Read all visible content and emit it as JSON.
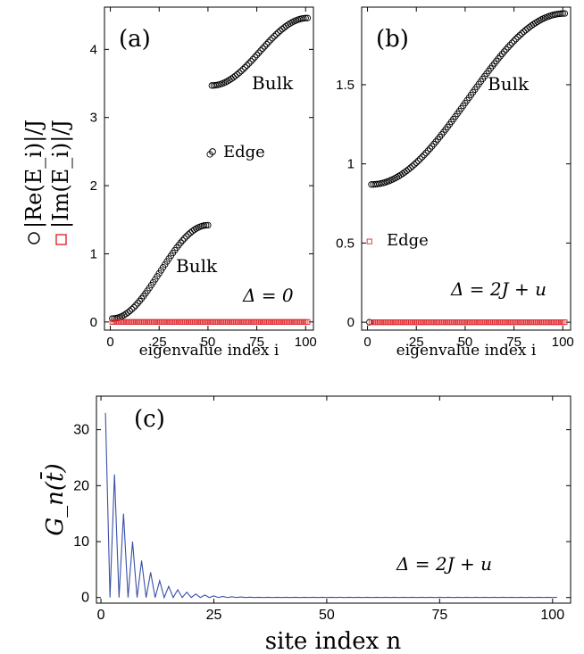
{
  "chart_data": [
    {
      "type": "scatter",
      "panel_label": "(a)",
      "xlabel": "eigenvalue index i",
      "ylabel_re": "|Re(E_i)|/J",
      "ylabel_im": "|Im(E_i)|/J",
      "xlim": [
        -3,
        104
      ],
      "ylim": [
        -0.12,
        4.62
      ],
      "xticks": [
        "0",
        "25",
        "50",
        "75",
        "100"
      ],
      "yticks": [
        "0",
        "1",
        "2",
        "3",
        "4"
      ],
      "annotations": [
        "Bulk",
        "Edge",
        "Bulk",
        "Δ = 0"
      ],
      "series": [
        {
          "marker": "circle",
          "color": "#000000",
          "segments": [
            {
              "i_start": 1,
              "i_end": 50,
              "y_start": 0.05,
              "y_end": 1.42
            },
            {
              "i_start": 52,
              "i_end": 101,
              "y_start": 3.47,
              "y_end": 4.46
            }
          ],
          "points": [
            {
              "x": 51,
              "y": 2.46
            }
          ]
        },
        {
          "marker": "square",
          "color": "#e0282e",
          "x_start": 1,
          "x_end": 101,
          "y": 0
        }
      ]
    },
    {
      "type": "scatter",
      "panel_label": "(b)",
      "xlabel": "eigenvalue index i",
      "xlim": [
        -3,
        104
      ],
      "ylim": [
        -0.05,
        1.99
      ],
      "xticks": [
        "0",
        "25",
        "50",
        "75",
        "100"
      ],
      "yticks": [
        "0",
        "0.5",
        "1",
        "1.5"
      ],
      "annotations": [
        "Bulk",
        "Edge",
        "Δ = 2J + u"
      ],
      "series": [
        {
          "marker": "circle",
          "color": "#000000",
          "segments": [
            {
              "i_start": 1,
              "i_end": 101,
              "y_start": 0.0,
              "y_end": 1.95,
              "first_i": 2,
              "first_y": 0.87
            }
          ],
          "points": [
            {
              "x": 1,
              "y": 0.0
            }
          ]
        },
        {
          "marker": "square",
          "color": "#e0282e",
          "x_start": 2,
          "x_end": 101,
          "y": 0,
          "points": [
            {
              "x": 1,
              "y": 0.51
            }
          ]
        }
      ]
    },
    {
      "type": "line",
      "panel_label": "(c)",
      "xlabel": "site index n",
      "ylabel": "G_n(t̄)",
      "xlim": [
        -1,
        104
      ],
      "ylim": [
        -1,
        36
      ],
      "xticks": [
        "0",
        "25",
        "50",
        "75",
        "100"
      ],
      "yticks": [
        "0",
        "10",
        "20",
        "30"
      ],
      "annotations": [
        "Δ = 2J + u"
      ],
      "series": [
        {
          "color": "#3b4fa8",
          "odd_sites": [
            [
              1,
              33
            ],
            [
              3,
              22
            ],
            [
              5,
              15
            ],
            [
              7,
              10
            ],
            [
              9,
              6.6
            ],
            [
              11,
              4.5
            ],
            [
              13,
              3
            ],
            [
              15,
              2
            ],
            [
              17,
              1.4
            ],
            [
              19,
              0.95
            ],
            [
              21,
              0.65
            ],
            [
              23,
              0.45
            ],
            [
              25,
              0.3
            ],
            [
              27,
              0.2
            ],
            [
              29,
              0.14
            ],
            [
              31,
              0.1
            ],
            [
              33,
              0.07
            ]
          ],
          "even_sites": 0,
          "n_end": 101
        }
      ]
    }
  ]
}
